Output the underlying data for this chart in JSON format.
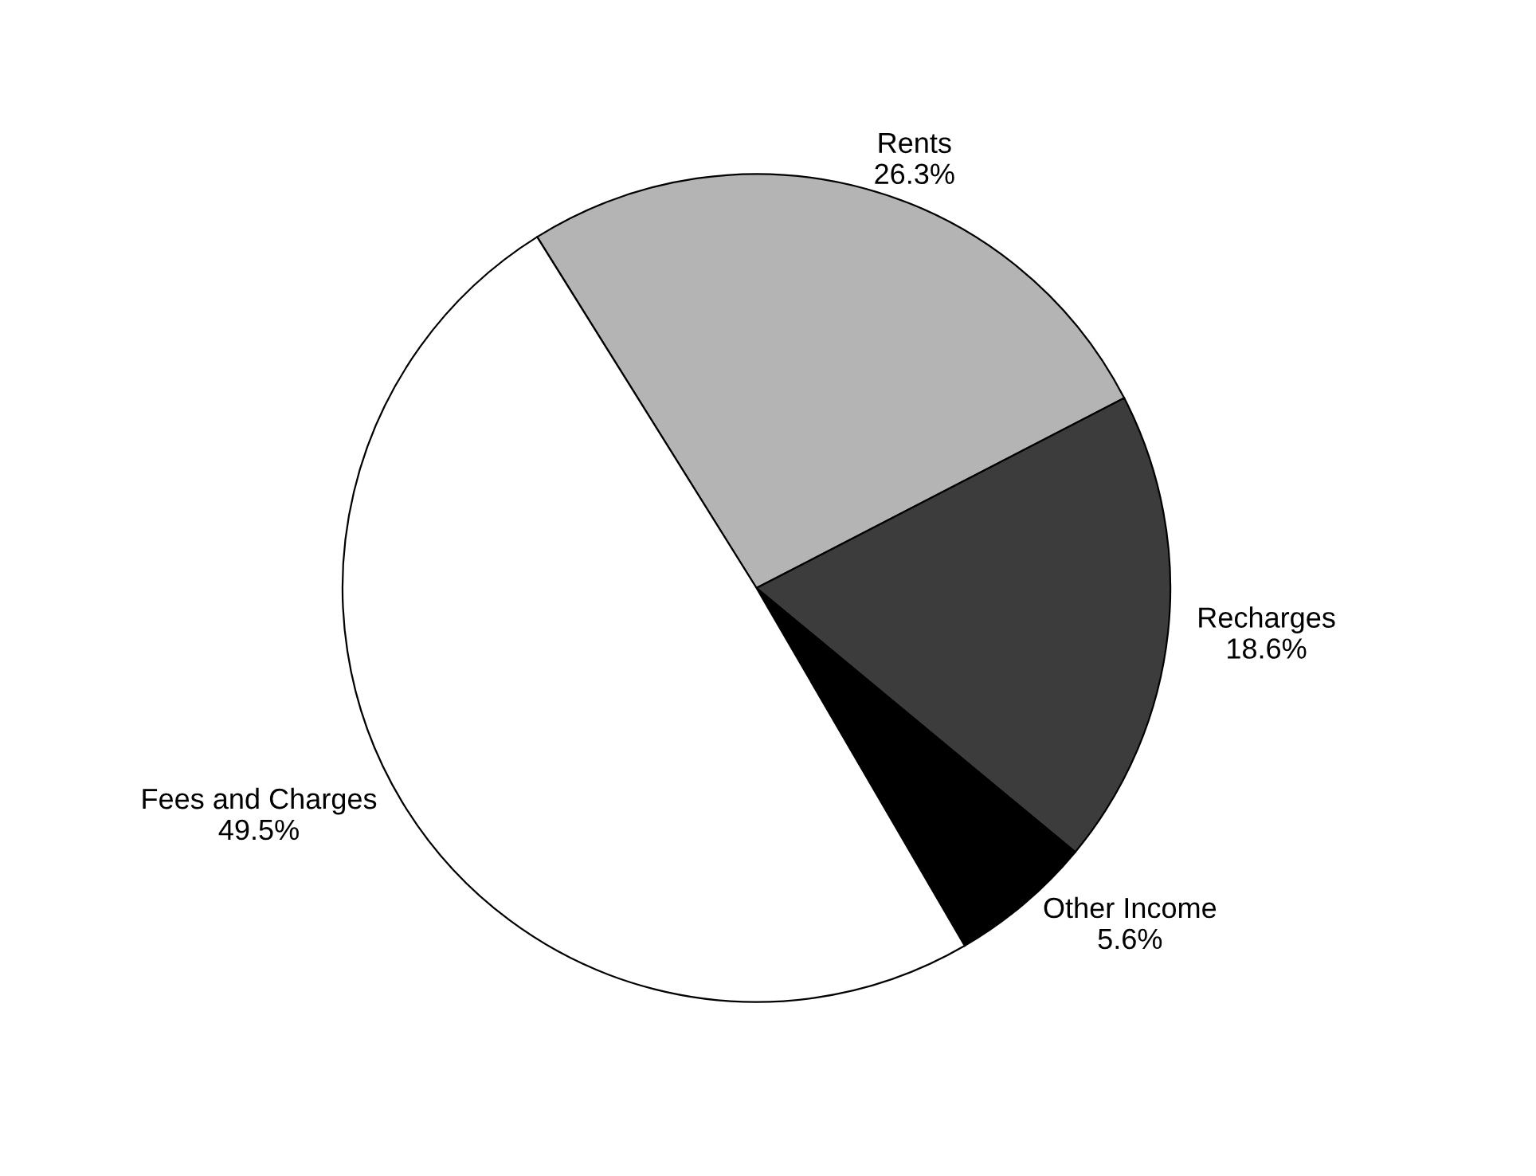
{
  "chart_data": {
    "type": "pie",
    "categories": [
      "Rents",
      "Recharges",
      "Other Income",
      "Fees and Charges"
    ],
    "values": [
      26.3,
      18.6,
      5.6,
      49.5
    ],
    "colors": [
      "#b4b4b4",
      "#3c3c3c",
      "#000000",
      "#ffffff"
    ],
    "value_labels": [
      "26.3%",
      "18.6%",
      "5.6%",
      "49.5%"
    ]
  }
}
